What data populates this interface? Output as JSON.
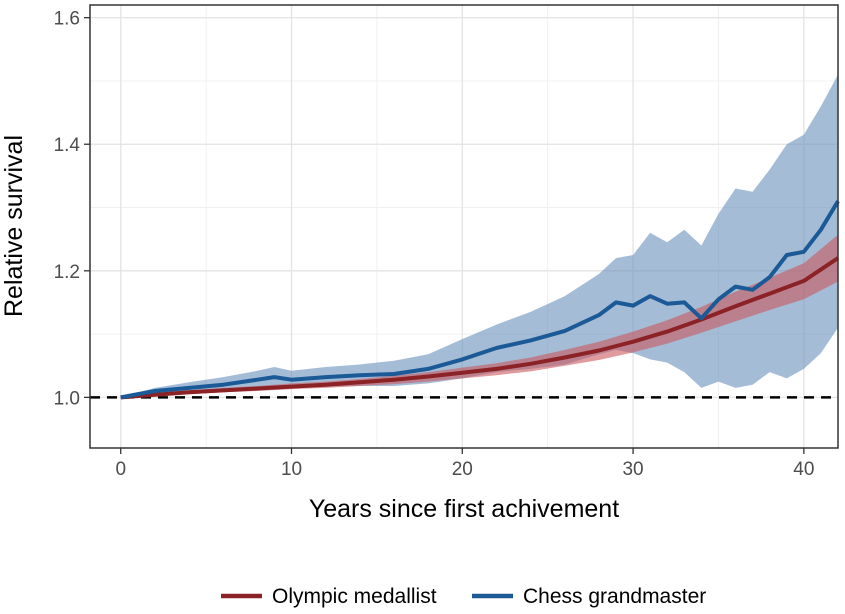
{
  "chart_data": {
    "type": "line",
    "xlabel": "Years since first achivement",
    "ylabel": "Relative survival",
    "xlim": [
      -1.8,
      42
    ],
    "ylim": [
      0.92,
      1.62
    ],
    "x_ticks": [
      0,
      10,
      20,
      30,
      40
    ],
    "y_ticks": [
      1.0,
      1.2,
      1.4,
      1.6
    ],
    "y_tick_labels": [
      "1.0",
      "1.2",
      "1.4",
      "1.6"
    ],
    "grid": true,
    "reference_line": {
      "y": 1.0,
      "style": "dashed",
      "color": "#000000"
    },
    "legend": {
      "position": "bottom",
      "entries": [
        "Olympic medallist",
        "Chess grandmaster"
      ]
    },
    "series": [
      {
        "name": "Olympic medallist",
        "color": "#8b2226",
        "band_color": "#c9595d",
        "x": [
          0,
          2,
          4,
          6,
          8,
          10,
          12,
          14,
          16,
          18,
          20,
          22,
          24,
          26,
          28,
          30,
          32,
          34,
          36,
          38,
          40,
          42
        ],
        "y": [
          1.0,
          1.004,
          1.008,
          1.011,
          1.014,
          1.017,
          1.02,
          1.024,
          1.028,
          1.033,
          1.039,
          1.045,
          1.053,
          1.063,
          1.074,
          1.088,
          1.104,
          1.123,
          1.144,
          1.164,
          1.184,
          1.22
        ],
        "lower": [
          1.0,
          1.002,
          1.005,
          1.008,
          1.01,
          1.013,
          1.015,
          1.018,
          1.021,
          1.025,
          1.03,
          1.035,
          1.041,
          1.05,
          1.059,
          1.071,
          1.085,
          1.102,
          1.12,
          1.138,
          1.155,
          1.183
        ],
        "upper": [
          1.0,
          1.006,
          1.011,
          1.015,
          1.018,
          1.022,
          1.025,
          1.029,
          1.034,
          1.04,
          1.047,
          1.054,
          1.063,
          1.075,
          1.088,
          1.104,
          1.122,
          1.143,
          1.167,
          1.189,
          1.212,
          1.257
        ]
      },
      {
        "name": "Chess grandmaster",
        "color": "#1b5a96",
        "band_color": "#6e93bd",
        "x": [
          0,
          2,
          4,
          6,
          8,
          9,
          10,
          12,
          14,
          16,
          18,
          20,
          22,
          24,
          26,
          28,
          29,
          30,
          31,
          32,
          33,
          34,
          35,
          36,
          37,
          38,
          39,
          40,
          41,
          42
        ],
        "y": [
          1.0,
          1.01,
          1.015,
          1.02,
          1.028,
          1.032,
          1.028,
          1.032,
          1.035,
          1.037,
          1.045,
          1.06,
          1.078,
          1.09,
          1.105,
          1.13,
          1.15,
          1.145,
          1.16,
          1.148,
          1.15,
          1.125,
          1.155,
          1.175,
          1.17,
          1.19,
          1.225,
          1.23,
          1.265,
          1.31
        ],
        "lower": [
          1.0,
          1.005,
          1.007,
          1.01,
          1.015,
          1.018,
          1.015,
          1.017,
          1.018,
          1.018,
          1.022,
          1.03,
          1.04,
          1.045,
          1.052,
          1.068,
          1.075,
          1.07,
          1.06,
          1.055,
          1.04,
          1.015,
          1.025,
          1.015,
          1.02,
          1.04,
          1.03,
          1.045,
          1.07,
          1.11
        ],
        "upper": [
          1.0,
          1.015,
          1.024,
          1.032,
          1.042,
          1.048,
          1.042,
          1.048,
          1.052,
          1.058,
          1.068,
          1.092,
          1.115,
          1.135,
          1.16,
          1.195,
          1.22,
          1.225,
          1.26,
          1.245,
          1.265,
          1.24,
          1.29,
          1.33,
          1.325,
          1.36,
          1.4,
          1.415,
          1.46,
          1.51
        ]
      }
    ]
  }
}
